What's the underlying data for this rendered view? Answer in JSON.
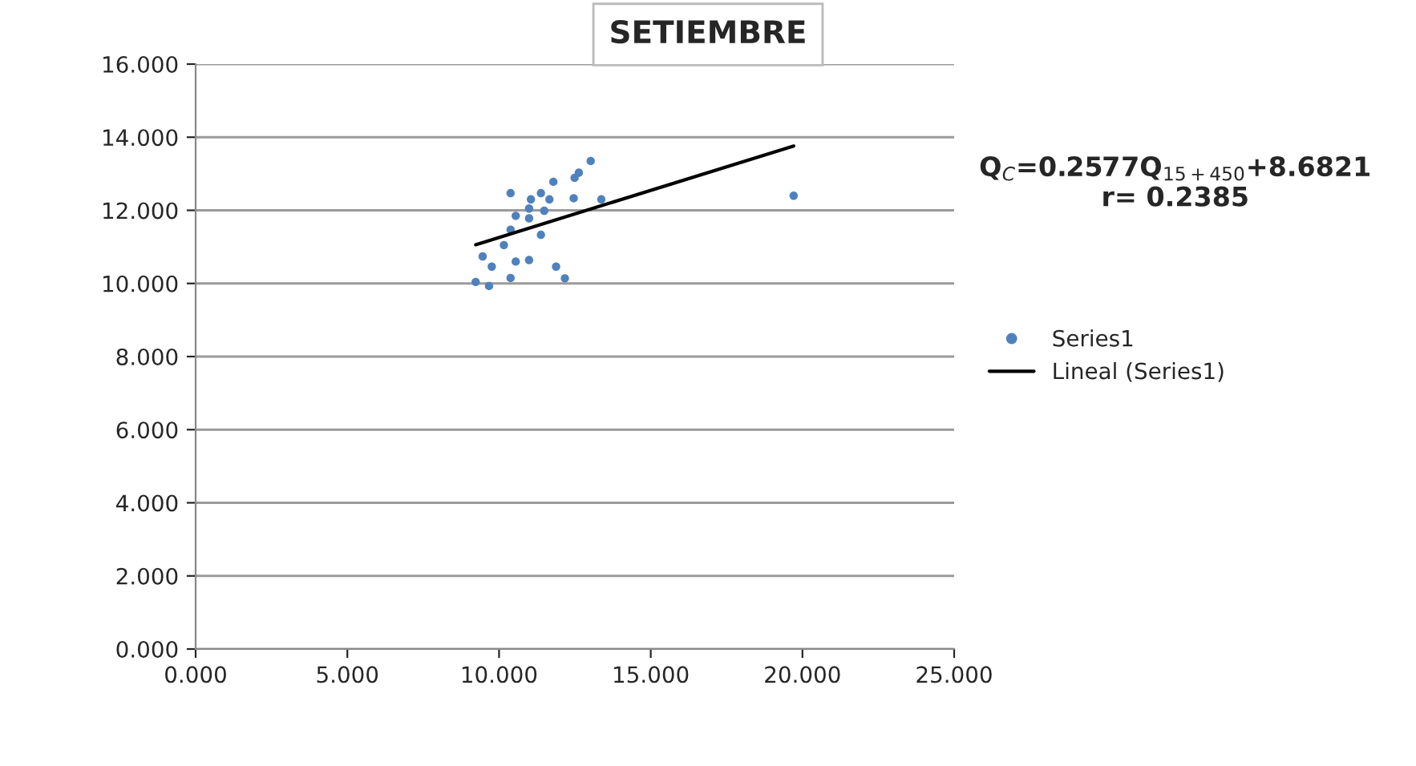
{
  "chart_data": {
    "type": "scatter",
    "title": "SETIEMBRE",
    "series": [
      {
        "name": "Series1",
        "color": "#4f81bd",
        "marker": "circle",
        "x": [
          13.02,
          12.63,
          12.49,
          11.79,
          10.38,
          11.38,
          11.05,
          11.66,
          12.46,
          13.37,
          10.99,
          11.49,
          10.55,
          10.99,
          10.38,
          11.38,
          10.16,
          9.46,
          9.76,
          10.55,
          10.99,
          11.88,
          9.23,
          9.67,
          10.38,
          12.17,
          19.71
        ],
        "values": [
          13.35,
          13.03,
          12.89,
          12.78,
          12.47,
          12.47,
          12.3,
          12.3,
          12.33,
          12.3,
          12.05,
          11.99,
          11.85,
          11.78,
          11.47,
          11.33,
          11.05,
          10.74,
          10.46,
          10.6,
          10.64,
          10.46,
          10.04,
          9.93,
          10.15,
          10.14,
          12.4
        ]
      },
      {
        "name": "Lineal (Series1)",
        "type": "line",
        "color": "#000000",
        "line_style": "solid",
        "x": [
          9.23,
          19.71
        ],
        "values": [
          11.06,
          13.76
        ]
      }
    ],
    "xlim": [
      0,
      25
    ],
    "xticks": [
      {
        "value": 0,
        "label": "0.000"
      },
      {
        "value": 5,
        "label": "5.000"
      },
      {
        "value": 10,
        "label": "10.000"
      },
      {
        "value": 15,
        "label": "15.000"
      },
      {
        "value": 20,
        "label": "20.000"
      },
      {
        "value": 25,
        "label": "25.000"
      }
    ],
    "ylim": [
      0,
      16
    ],
    "yticks": [
      {
        "value": 0,
        "label": "0.000"
      },
      {
        "value": 2,
        "label": "2.000"
      },
      {
        "value": 4,
        "label": "4.000"
      },
      {
        "value": 6,
        "label": "6.000"
      },
      {
        "value": 8,
        "label": "8.000"
      },
      {
        "value": 10,
        "label": "10.000"
      },
      {
        "value": 12,
        "label": "12.000"
      },
      {
        "value": 14,
        "label": "14.000"
      },
      {
        "value": 16,
        "label": "16.000"
      }
    ],
    "grid": "y",
    "legend": "right",
    "annotations": [
      "Q$_{C}$=0.2577Q$_{15+450}$+8.6821\nr= 0.2385"
    ]
  }
}
